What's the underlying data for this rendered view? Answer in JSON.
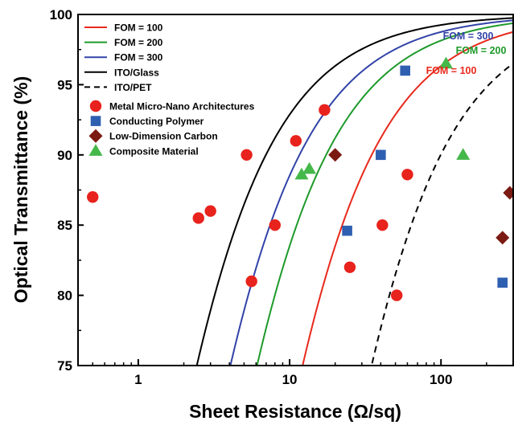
{
  "chart_data": {
    "type": "scatter",
    "xlabel": "Sheet Resistance (Ω/sq)",
    "ylabel": "Optical Transmittance (%)",
    "xscale": "log",
    "xlim": [
      0.4,
      300
    ],
    "ylim": [
      75,
      100
    ],
    "xticks": [
      {
        "value": 1,
        "label": "1"
      },
      {
        "value": 10,
        "label": "10"
      },
      {
        "value": 100,
        "label": "100"
      }
    ],
    "yticks": [
      {
        "value": 75,
        "label": "75"
      },
      {
        "value": 80,
        "label": "80"
      },
      {
        "value": 85,
        "label": "85"
      },
      {
        "value": 90,
        "label": "90"
      },
      {
        "value": 95,
        "label": "95"
      },
      {
        "value": 100,
        "label": "100"
      }
    ],
    "grid": false,
    "legend_position": "top-left",
    "curves": [
      {
        "name": "FOM = 100",
        "fom": 100,
        "color": "#e8291c",
        "dash": "solid",
        "annotation": "FOM = 100"
      },
      {
        "name": "FOM = 200",
        "fom": 200,
        "color": "#1e9a2a",
        "dash": "solid",
        "annotation": "FOM = 200"
      },
      {
        "name": "FOM = 300",
        "fom": 300,
        "color": "#3243a8",
        "dash": "solid",
        "annotation": "FOM = 300"
      },
      {
        "name": "ITO/Glass",
        "fom": 500,
        "color": "#000000",
        "dash": "solid"
      },
      {
        "name": "ITO/PET",
        "fom": 35,
        "color": "#000000",
        "dash": "dashed"
      }
    ],
    "series": [
      {
        "name": "Metal Micro-Nano Architectures",
        "marker": "circle",
        "color": "#e8221c",
        "points": [
          [
            0.5,
            87
          ],
          [
            2.5,
            85.5
          ],
          [
            3,
            86
          ],
          [
            5.2,
            90
          ],
          [
            5.6,
            81
          ],
          [
            8,
            85
          ],
          [
            11,
            91
          ],
          [
            17,
            93.2
          ],
          [
            25,
            82
          ],
          [
            41,
            85
          ],
          [
            51,
            80
          ],
          [
            60,
            88.6
          ]
        ]
      },
      {
        "name": "Conducting Polymer",
        "marker": "square",
        "color": "#2f5fb0",
        "points": [
          [
            24,
            84.6
          ],
          [
            40,
            90
          ],
          [
            58,
            96
          ],
          [
            255,
            80.9
          ]
        ]
      },
      {
        "name": "Low-Dimension Carbon",
        "marker": "diamond",
        "color": "#7b1a12",
        "points": [
          [
            20,
            90
          ],
          [
            255,
            84.1
          ],
          [
            285,
            87.3
          ]
        ]
      },
      {
        "name": "Composite Material",
        "marker": "triangle",
        "color": "#45b84a",
        "points": [
          [
            12,
            88.6
          ],
          [
            13.5,
            89
          ],
          [
            108,
            96.5
          ],
          [
            140,
            90
          ]
        ]
      }
    ]
  }
}
